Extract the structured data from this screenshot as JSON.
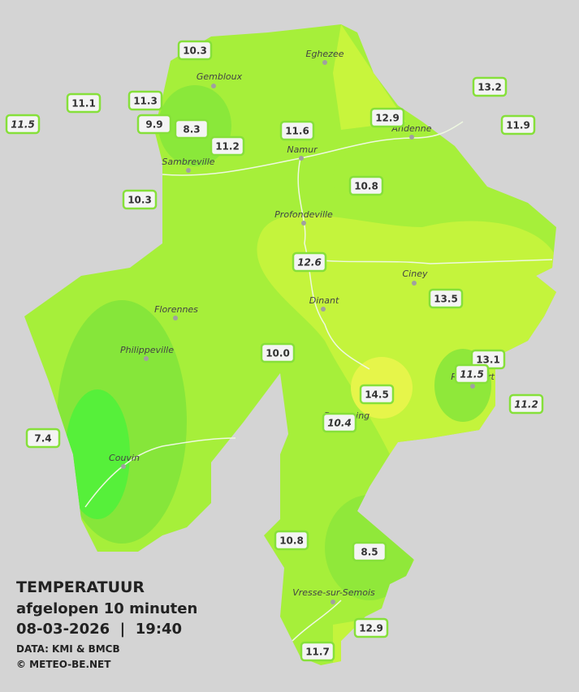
{
  "title": {
    "heading": "TEMPERATUUR",
    "subtitle": "afgelopen 10 minuten",
    "datetime": "08-03-2026  |  19:40",
    "source": "DATA: KMI & BMCB",
    "copyright": "© METEO-BE.NET"
  },
  "cities": [
    "Eghezee",
    "Gembloux",
    "Andenne",
    "Namur",
    "Sambreville",
    "Profondeville",
    "Ciney",
    "Dinant",
    "Florennes",
    "Philippeville",
    "Couvin",
    "Vresse-sur-Semois",
    "Rochefort",
    "Beauraing"
  ],
  "readings": [
    {
      "value": "10.3"
    },
    {
      "value": "11.1"
    },
    {
      "value": "11.3"
    },
    {
      "value": "11.5",
      "italic": true
    },
    {
      "value": "9.9"
    },
    {
      "value": "8.3"
    },
    {
      "value": "11.2"
    },
    {
      "value": "11.6"
    },
    {
      "value": "12.9"
    },
    {
      "value": "13.2"
    },
    {
      "value": "11.9"
    },
    {
      "value": "10.3"
    },
    {
      "value": "10.8"
    },
    {
      "value": "12.6",
      "italic": true
    },
    {
      "value": "13.5"
    },
    {
      "value": "10.0"
    },
    {
      "value": "13.1"
    },
    {
      "value": "11.5",
      "italic": true
    },
    {
      "value": "14.5"
    },
    {
      "value": "11.2",
      "italic": true
    },
    {
      "value": "10.4",
      "italic": true
    },
    {
      "value": "7.4"
    },
    {
      "value": "10.8"
    },
    {
      "value": "8.5"
    },
    {
      "value": "12.9"
    },
    {
      "value": "11.7"
    }
  ]
}
